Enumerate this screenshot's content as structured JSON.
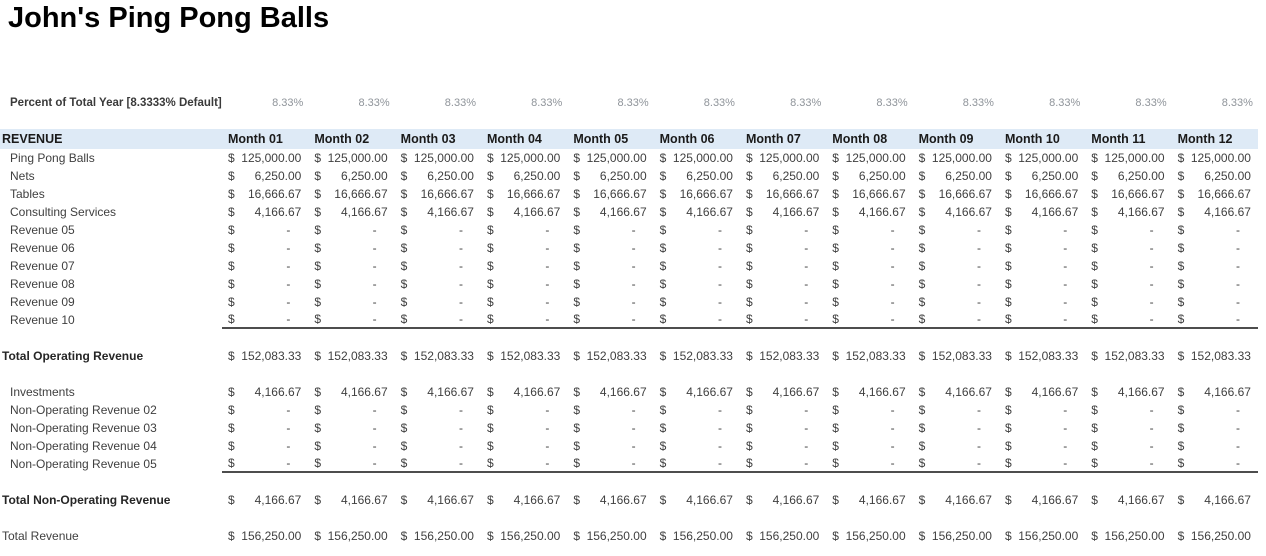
{
  "title": "John's Ping Pong Balls",
  "currency_symbol": "$",
  "percent_row": {
    "label": "Percent of Total Year [8.3333% Default]",
    "values": [
      "8.33%",
      "8.33%",
      "8.33%",
      "8.33%",
      "8.33%",
      "8.33%",
      "8.33%",
      "8.33%",
      "8.33%",
      "8.33%",
      "8.33%",
      "8.33%"
    ]
  },
  "table": {
    "header": {
      "label": "REVENUE",
      "months": [
        "Month 01",
        "Month 02",
        "Month 03",
        "Month 04",
        "Month 05",
        "Month 06",
        "Month 07",
        "Month 08",
        "Month 09",
        "Month 10",
        "Month 11",
        "Month 12"
      ]
    },
    "rows": [
      {
        "label": "Ping Pong Balls",
        "bold": false,
        "indent": true,
        "underline": false,
        "gap_above": 0,
        "values": [
          "125,000.00",
          "125,000.00",
          "125,000.00",
          "125,000.00",
          "125,000.00",
          "125,000.00",
          "125,000.00",
          "125,000.00",
          "125,000.00",
          "125,000.00",
          "125,000.00",
          "125,000.00"
        ]
      },
      {
        "label": "Nets",
        "bold": false,
        "indent": true,
        "underline": false,
        "gap_above": 0,
        "values": [
          "6,250.00",
          "6,250.00",
          "6,250.00",
          "6,250.00",
          "6,250.00",
          "6,250.00",
          "6,250.00",
          "6,250.00",
          "6,250.00",
          "6,250.00",
          "6,250.00",
          "6,250.00"
        ]
      },
      {
        "label": "Tables",
        "bold": false,
        "indent": true,
        "underline": false,
        "gap_above": 0,
        "values": [
          "16,666.67",
          "16,666.67",
          "16,666.67",
          "16,666.67",
          "16,666.67",
          "16,666.67",
          "16,666.67",
          "16,666.67",
          "16,666.67",
          "16,666.67",
          "16,666.67",
          "16,666.67"
        ]
      },
      {
        "label": "Consulting Services",
        "bold": false,
        "indent": true,
        "underline": false,
        "gap_above": 0,
        "values": [
          "4,166.67",
          "4,166.67",
          "4,166.67",
          "4,166.67",
          "4,166.67",
          "4,166.67",
          "4,166.67",
          "4,166.67",
          "4,166.67",
          "4,166.67",
          "4,166.67",
          "4,166.67"
        ]
      },
      {
        "label": "Revenue 05",
        "bold": false,
        "indent": true,
        "underline": false,
        "gap_above": 0,
        "values": [
          "-",
          "-",
          "-",
          "-",
          "-",
          "-",
          "-",
          "-",
          "-",
          "-",
          "-",
          "-"
        ]
      },
      {
        "label": "Revenue 06",
        "bold": false,
        "indent": true,
        "underline": false,
        "gap_above": 0,
        "values": [
          "-",
          "-",
          "-",
          "-",
          "-",
          "-",
          "-",
          "-",
          "-",
          "-",
          "-",
          "-"
        ]
      },
      {
        "label": "Revenue 07",
        "bold": false,
        "indent": true,
        "underline": false,
        "gap_above": 0,
        "values": [
          "-",
          "-",
          "-",
          "-",
          "-",
          "-",
          "-",
          "-",
          "-",
          "-",
          "-",
          "-"
        ]
      },
      {
        "label": "Revenue 08",
        "bold": false,
        "indent": true,
        "underline": false,
        "gap_above": 0,
        "values": [
          "-",
          "-",
          "-",
          "-",
          "-",
          "-",
          "-",
          "-",
          "-",
          "-",
          "-",
          "-"
        ]
      },
      {
        "label": "Revenue 09",
        "bold": false,
        "indent": true,
        "underline": false,
        "gap_above": 0,
        "values": [
          "-",
          "-",
          "-",
          "-",
          "-",
          "-",
          "-",
          "-",
          "-",
          "-",
          "-",
          "-"
        ]
      },
      {
        "label": "Revenue 10",
        "bold": false,
        "indent": true,
        "underline": true,
        "gap_above": 0,
        "values": [
          "-",
          "-",
          "-",
          "-",
          "-",
          "-",
          "-",
          "-",
          "-",
          "-",
          "-",
          "-"
        ]
      },
      {
        "label": "Total Operating Revenue",
        "bold": true,
        "indent": false,
        "underline": false,
        "gap_above": 1,
        "values": [
          "152,083.33",
          "152,083.33",
          "152,083.33",
          "152,083.33",
          "152,083.33",
          "152,083.33",
          "152,083.33",
          "152,083.33",
          "152,083.33",
          "152,083.33",
          "152,083.33",
          "152,083.33"
        ]
      },
      {
        "label": "Investments",
        "bold": false,
        "indent": true,
        "underline": false,
        "gap_above": 1,
        "values": [
          "4,166.67",
          "4,166.67",
          "4,166.67",
          "4,166.67",
          "4,166.67",
          "4,166.67",
          "4,166.67",
          "4,166.67",
          "4,166.67",
          "4,166.67",
          "4,166.67",
          "4,166.67"
        ]
      },
      {
        "label": "Non-Operating Revenue 02",
        "bold": false,
        "indent": true,
        "underline": false,
        "gap_above": 0,
        "values": [
          "-",
          "-",
          "-",
          "-",
          "-",
          "-",
          "-",
          "-",
          "-",
          "-",
          "-",
          "-"
        ]
      },
      {
        "label": "Non-Operating Revenue 03",
        "bold": false,
        "indent": true,
        "underline": false,
        "gap_above": 0,
        "values": [
          "-",
          "-",
          "-",
          "-",
          "-",
          "-",
          "-",
          "-",
          "-",
          "-",
          "-",
          "-"
        ]
      },
      {
        "label": "Non-Operating Revenue 04",
        "bold": false,
        "indent": true,
        "underline": false,
        "gap_above": 0,
        "values": [
          "-",
          "-",
          "-",
          "-",
          "-",
          "-",
          "-",
          "-",
          "-",
          "-",
          "-",
          "-"
        ]
      },
      {
        "label": "Non-Operating Revenue 05",
        "bold": false,
        "indent": true,
        "underline": true,
        "gap_above": 0,
        "values": [
          "-",
          "-",
          "-",
          "-",
          "-",
          "-",
          "-",
          "-",
          "-",
          "-",
          "-",
          "-"
        ]
      },
      {
        "label": "Total Non-Operating Revenue",
        "bold": true,
        "indent": false,
        "underline": false,
        "gap_above": 1,
        "values": [
          "4,166.67",
          "4,166.67",
          "4,166.67",
          "4,166.67",
          "4,166.67",
          "4,166.67",
          "4,166.67",
          "4,166.67",
          "4,166.67",
          "4,166.67",
          "4,166.67",
          "4,166.67"
        ]
      },
      {
        "label": "Total Revenue",
        "bold": false,
        "indent": false,
        "underline": false,
        "gap_above": 1,
        "values": [
          "156,250.00",
          "156,250.00",
          "156,250.00",
          "156,250.00",
          "156,250.00",
          "156,250.00",
          "156,250.00",
          "156,250.00",
          "156,250.00",
          "156,250.00",
          "156,250.00",
          "156,250.00"
        ]
      }
    ]
  }
}
